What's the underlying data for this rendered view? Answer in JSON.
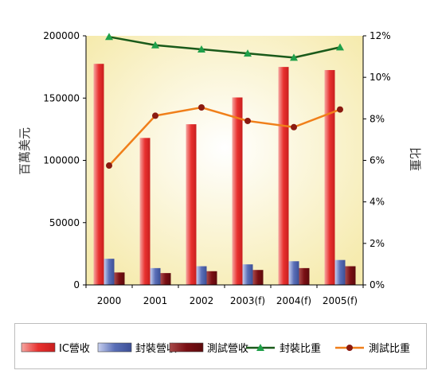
{
  "chart_data": {
    "type": "bar",
    "categories": [
      "2000",
      "2001",
      "2002",
      "2003(f)",
      "2004(f)",
      "2005(f)"
    ],
    "ylabel_left": "百萬美元",
    "ylabel_right": "比重",
    "ylim_left": [
      0,
      200000
    ],
    "ylim_right": [
      0,
      12
    ],
    "yticks_left": [
      "0",
      "50000",
      "100000",
      "150000",
      "200000"
    ],
    "yticks_right": [
      "0%",
      "2%",
      "4%",
      "6%",
      "8%",
      "10%",
      "12%"
    ],
    "bar_series": [
      {
        "name": "IC營收",
        "values": [
          177500,
          118000,
          129000,
          150500,
          175000,
          172500
        ],
        "color": "#e8312f"
      },
      {
        "name": "封裝營收",
        "values": [
          21000,
          13500,
          15000,
          16500,
          19000,
          20000
        ],
        "color": "#5a6fb8"
      },
      {
        "name": "測試營收",
        "values": [
          10000,
          9500,
          11000,
          12000,
          13500,
          15000
        ],
        "color": "#7a0f14"
      }
    ],
    "line_series": [
      {
        "name": "封裝比重",
        "values": [
          11.95,
          11.55,
          11.35,
          11.15,
          10.95,
          11.45
        ],
        "color": "#1a5a1a",
        "marker": "triangle",
        "marker_color": "#1fa04a",
        "axis": "right"
      },
      {
        "name": "測試比重",
        "values": [
          5.75,
          8.15,
          8.55,
          7.9,
          7.6,
          8.45
        ],
        "color": "#f07f1a",
        "marker": "circle",
        "marker_color": "#8b1a10",
        "axis": "right"
      }
    ],
    "plot_background": "#f6ebaf",
    "grid": false,
    "legend_position": "bottom"
  }
}
